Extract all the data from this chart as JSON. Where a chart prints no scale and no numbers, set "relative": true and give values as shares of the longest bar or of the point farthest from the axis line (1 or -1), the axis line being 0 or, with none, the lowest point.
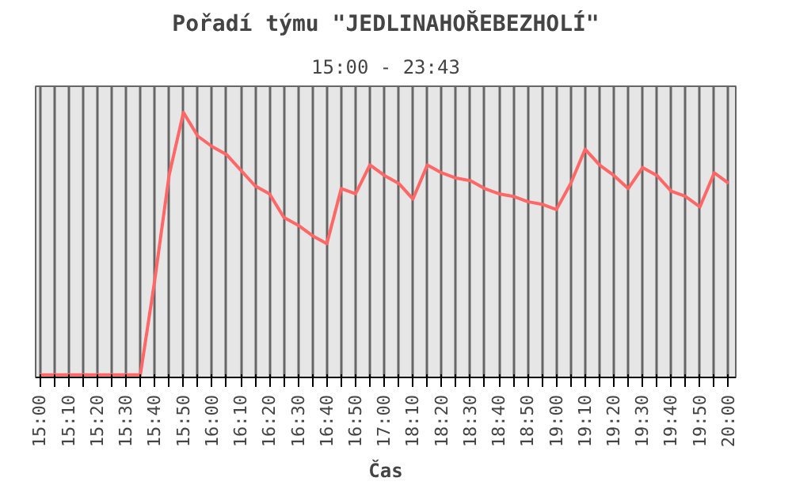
{
  "chart_data": {
    "type": "line",
    "title": "Pořadí týmu \"JEDLINAHOŘEBEZHOLÍ\"",
    "subtitle": "15:00 - 23:43",
    "xlabel": "Čas",
    "relative": true,
    "grid": "x",
    "marker": "none",
    "line_style": "solid",
    "categories": [
      "15:00",
      null,
      "15:10",
      null,
      "15:20",
      null,
      "15:30",
      null,
      "15:40",
      null,
      "15:50",
      null,
      "16:00",
      null,
      "16:10",
      null,
      "16:20",
      null,
      "16:30",
      null,
      "16:40",
      null,
      "16:50",
      null,
      "17:00",
      null,
      "18:10",
      null,
      "18:20",
      null,
      "18:30",
      null,
      "18:40",
      null,
      "18:50",
      null,
      "19:00",
      null,
      "19:10",
      null,
      "19:20",
      null,
      "19:30",
      null,
      "19:40",
      null,
      "19:50",
      null,
      "20:00"
    ],
    "series": [
      {
        "color": "#ff6666",
        "values": [
          0,
          0,
          0,
          0,
          0,
          0,
          0,
          0,
          0.36,
          0.76,
          1.0,
          0.91,
          0.87,
          0.84,
          0.78,
          0.72,
          0.69,
          0.6,
          0.57,
          0.53,
          0.5,
          0.71,
          0.69,
          0.8,
          0.76,
          0.73,
          0.67,
          0.8,
          0.77,
          0.75,
          0.74,
          0.71,
          0.69,
          0.68,
          0.66,
          0.65,
          0.63,
          0.73,
          0.86,
          0.8,
          0.76,
          0.71,
          0.79,
          0.76,
          0.7,
          0.68,
          0.64,
          0.77,
          0.73
        ]
      }
    ]
  }
}
